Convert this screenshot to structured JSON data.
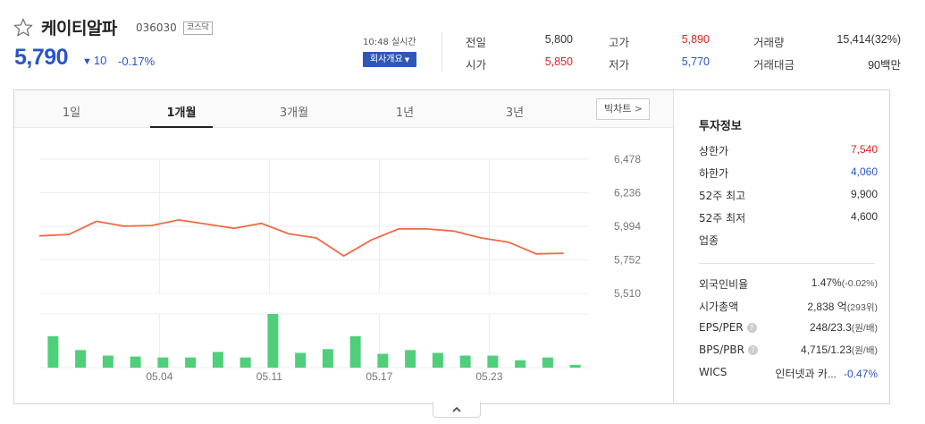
{
  "stock": {
    "name": "케이티알파",
    "code": "036030",
    "market": "코스닥",
    "price": "5,790",
    "change_arrow": "▼",
    "change": "10",
    "rate": "-0.17%",
    "realtime": "10:48 실시간",
    "company_button": "회사개요",
    "price_color": "#2a55c9"
  },
  "quotes": [
    {
      "label": "전일",
      "value": "5,800",
      "color": "dark"
    },
    {
      "label": "고가",
      "value": "5,890",
      "color": "red"
    },
    {
      "label": "거래량",
      "value": "15,414(32%)",
      "color": "dark"
    },
    {
      "label": "시가",
      "value": "5,850",
      "color": "red"
    },
    {
      "label": "저가",
      "value": "5,770",
      "color": "blue"
    },
    {
      "label": "거래대금",
      "value": "90백만",
      "color": "dark"
    }
  ],
  "tabs": [
    {
      "label": "1일",
      "active": false
    },
    {
      "label": "1개월",
      "active": true
    },
    {
      "label": "3개월",
      "active": false
    },
    {
      "label": "1년",
      "active": false
    },
    {
      "label": "3년",
      "active": false
    }
  ],
  "big_chart_button": "빅차트",
  "chart_data": {
    "type": "line",
    "y_ticks": [
      "6,478",
      "6,236",
      "5,994",
      "5,752",
      "5,510"
    ],
    "ylim": [
      5510,
      6478
    ],
    "x_ticks": [
      "05.04",
      "05.11",
      "05.17",
      "05.23"
    ],
    "line_color": "#f06a45",
    "bar_color": "#4fcf7a",
    "series": [
      {
        "values": [
          5925,
          5935,
          6030,
          5995,
          6000,
          6040,
          6010,
          5980,
          6015,
          5940,
          5910,
          5780,
          5895,
          5975,
          5975,
          5960,
          5910,
          5880,
          5795,
          5800
        ]
      },
      {
        "values": [
          34,
          19,
          13,
          12,
          11,
          11,
          17,
          11,
          58,
          16,
          20,
          34,
          15,
          19,
          16,
          13,
          13,
          8,
          11,
          3
        ]
      }
    ]
  },
  "invest": {
    "title": "투자정보",
    "rows": [
      {
        "label": "상한가",
        "value": "7,540",
        "color": "red"
      },
      {
        "label": "하한가",
        "value": "4,060",
        "color": "blue"
      },
      {
        "label": "52주 최고",
        "value": "9,900",
        "color": "dark"
      },
      {
        "label": "52주 최저",
        "value": "4,600",
        "color": "dark"
      },
      {
        "label": "업종",
        "value": "",
        "color": "dark"
      }
    ],
    "rows2": [
      {
        "label": "외국인비율",
        "value": "1.47%",
        "sub": "(-0.02%)",
        "help": false
      },
      {
        "label": "시가총액",
        "value": "2,838 억",
        "sub": "(293위)",
        "help": false
      },
      {
        "label": "EPS/PER",
        "value": "248/23.3",
        "sub": "(원/배)",
        "help": true
      },
      {
        "label": "BPS/PBR",
        "value": "4,715/1.23",
        "sub": "(원/배)",
        "help": true
      },
      {
        "label": "WICS",
        "value": "인터넷과 카...",
        "sub": "-0.47%",
        "help": false
      }
    ]
  },
  "collapse_icon": "chevron-up-icon"
}
